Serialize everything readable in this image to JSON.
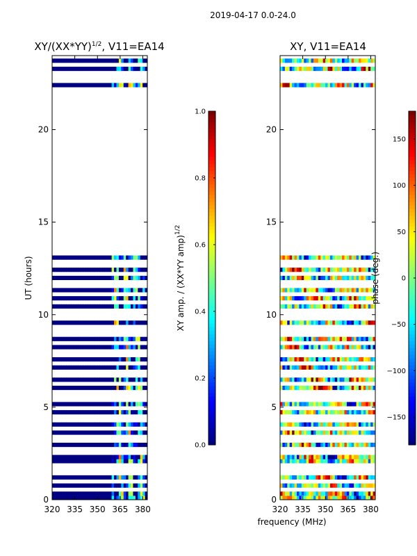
{
  "suptitle": "2019-04-17 0.0-24.0",
  "xlabel": "frequency (MHz)",
  "ylabel": "UT (hours)",
  "colors": {
    "background": "#ffffff",
    "jet_low": "#00007f",
    "jet_high": "#7f0000"
  },
  "chart_data": [
    {
      "type": "heatmap",
      "title_main": "XY/(XX*YY)",
      "title_exp": "1/2",
      "title_suffix": ", V11=EA14",
      "xlim": [
        320,
        383
      ],
      "ylim": [
        0,
        24
      ],
      "xticks": [
        320,
        335,
        350,
        365,
        380
      ],
      "yticks": [
        0,
        5,
        10,
        15,
        20
      ],
      "colorbar": {
        "label_main": "XY amp. / (XX*YY amp)",
        "label_exp": "1/2",
        "range": [
          0.0,
          1.0
        ],
        "ticks": [
          0.0,
          0.2,
          0.4,
          0.6,
          0.8,
          1.0
        ],
        "tick_labels": [
          "0.0",
          "0.2",
          "0.4",
          "0.6",
          "0.8",
          "1.0"
        ]
      },
      "data_rows_hours": [
        [
          0.0,
          13.0
        ],
        [
          22.3,
          24.0
        ]
      ],
      "blank_band_hours": [
        13.0,
        22.3
      ],
      "active_band_mhz": [
        360,
        380
      ],
      "background_value": 0.0
    },
    {
      "type": "heatmap",
      "title_main": "XY",
      "title_suffix": ", V11=EA14",
      "xlim": [
        320,
        383
      ],
      "ylim": [
        0,
        24
      ],
      "xticks": [
        320,
        335,
        350,
        365,
        380
      ],
      "yticks": [
        0,
        5,
        10,
        15,
        20
      ],
      "colorbar": {
        "label_main": "phase (deg.)",
        "range": [
          -180,
          180
        ],
        "ticks": [
          -150,
          -100,
          -50,
          0,
          50,
          100,
          150
        ],
        "tick_labels": [
          "−150",
          "−100",
          "−50",
          "0",
          "50",
          "100",
          "150"
        ]
      },
      "data_rows_hours": [
        [
          0.0,
          13.0
        ],
        [
          22.3,
          24.0
        ]
      ],
      "blank_band_hours": [
        13.0,
        22.3
      ],
      "value_range": [
        -180,
        180
      ]
    }
  ]
}
